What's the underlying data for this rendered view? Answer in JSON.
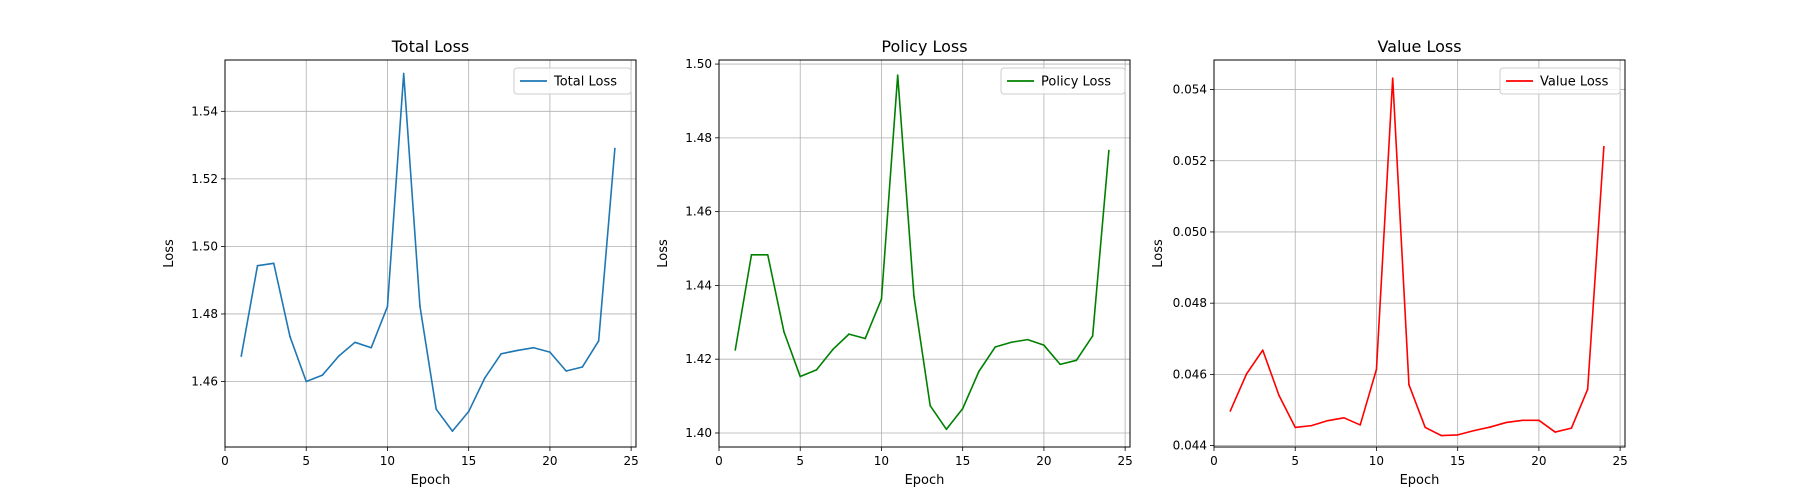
{
  "chart_data": [
    {
      "type": "line",
      "title": "Total Loss",
      "xlabel": "Epoch",
      "ylabel": "Loss",
      "xlim": [
        0,
        25.3
      ],
      "ylim": [
        1.4406,
        1.5552
      ],
      "xticks": [
        0,
        5,
        10,
        15,
        20,
        25
      ],
      "yticks": [
        1.46,
        1.48,
        1.5,
        1.52,
        1.54
      ],
      "ytick_format": 2,
      "grid": true,
      "legend_position": "upper right",
      "series": [
        {
          "name": "Total Loss",
          "color": "#1f77b4",
          "x": [
            1,
            2,
            3,
            4,
            5,
            6,
            7,
            8,
            9,
            10,
            11,
            12,
            13,
            14,
            15,
            16,
            17,
            18,
            19,
            20,
            21,
            22,
            23,
            24
          ],
          "y": [
            1.4675,
            1.4943,
            1.495,
            1.4733,
            1.46,
            1.4619,
            1.4675,
            1.4716,
            1.47,
            1.4822,
            1.5512,
            1.4823,
            1.4518,
            1.4453,
            1.4511,
            1.4611,
            1.4682,
            1.4692,
            1.47,
            1.4687,
            1.4631,
            1.4643,
            1.472,
            1.529
          ]
        }
      ]
    },
    {
      "type": "line",
      "title": "Policy Loss",
      "xlabel": "Epoch",
      "ylabel": "Loss",
      "xlim": [
        0,
        25.3
      ],
      "ylim": [
        1.3962,
        1.5011
      ],
      "xticks": [
        0,
        5,
        10,
        15,
        20,
        25
      ],
      "yticks": [
        1.4,
        1.42,
        1.44,
        1.46,
        1.48,
        1.5
      ],
      "ytick_format": 2,
      "grid": true,
      "legend_position": "upper right",
      "series": [
        {
          "name": "Policy Loss",
          "color": "#008000",
          "x": [
            1,
            2,
            3,
            4,
            5,
            6,
            7,
            8,
            9,
            10,
            11,
            12,
            13,
            14,
            15,
            16,
            17,
            18,
            19,
            20,
            21,
            22,
            23,
            24
          ],
          "y": [
            1.4225,
            1.4483,
            1.4483,
            1.4274,
            1.4153,
            1.4171,
            1.4226,
            1.4268,
            1.4256,
            1.4363,
            1.497,
            1.4371,
            1.4074,
            1.401,
            1.4066,
            1.4167,
            1.4233,
            1.4246,
            1.4253,
            1.4238,
            1.4186,
            1.4197,
            1.4263,
            1.4766
          ]
        }
      ]
    },
    {
      "type": "line",
      "title": "Value Loss",
      "xlabel": "Epoch",
      "ylabel": "Loss",
      "xlim": [
        0,
        25.3
      ],
      "ylim": [
        0.04396,
        0.05483
      ],
      "xticks": [
        0,
        5,
        10,
        15,
        20,
        25
      ],
      "yticks": [
        0.044,
        0.046,
        0.048,
        0.05,
        0.052,
        0.054
      ],
      "ytick_format": 3,
      "grid": true,
      "legend_position": "upper right",
      "series": [
        {
          "name": "Value Loss",
          "color": "#ff0000",
          "x": [
            1,
            2,
            3,
            4,
            5,
            6,
            7,
            8,
            9,
            10,
            11,
            12,
            13,
            14,
            15,
            16,
            17,
            18,
            19,
            20,
            21,
            22,
            23,
            24
          ],
          "y": [
            0.04497,
            0.04601,
            0.04668,
            0.04541,
            0.04451,
            0.04456,
            0.0447,
            0.04478,
            0.04458,
            0.04614,
            0.05432,
            0.04571,
            0.04451,
            0.04428,
            0.0443,
            0.04442,
            0.04452,
            0.04465,
            0.04471,
            0.04471,
            0.04438,
            0.04449,
            0.04558,
            0.0524
          ]
        }
      ]
    }
  ]
}
